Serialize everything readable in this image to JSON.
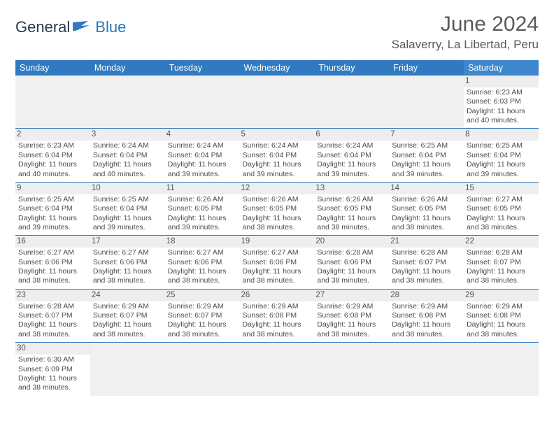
{
  "logo": {
    "general": "General",
    "blue": "Blue"
  },
  "header": {
    "title": "June 2024",
    "location": "Salaverry, La Libertad, Peru"
  },
  "colors": {
    "header_bg": "#2f7ac0",
    "header_bg_sat": "#3d87cd",
    "header_text": "#ffffff",
    "cell_border": "#2f7ac0",
    "daynum_bg": "#eeeeee",
    "body_text": "#4a4a4a",
    "title_text": "#5a5a5a"
  },
  "days_of_week": [
    "Sunday",
    "Monday",
    "Tuesday",
    "Wednesday",
    "Thursday",
    "Friday",
    "Saturday"
  ],
  "calendar": {
    "first_weekday_index": 6,
    "num_days": 30,
    "cells": [
      {
        "day": 1,
        "sunrise": "6:23 AM",
        "sunset": "6:03 PM",
        "daylight": "11 hours and 40 minutes."
      },
      {
        "day": 2,
        "sunrise": "6:23 AM",
        "sunset": "6:04 PM",
        "daylight": "11 hours and 40 minutes."
      },
      {
        "day": 3,
        "sunrise": "6:24 AM",
        "sunset": "6:04 PM",
        "daylight": "11 hours and 40 minutes."
      },
      {
        "day": 4,
        "sunrise": "6:24 AM",
        "sunset": "6:04 PM",
        "daylight": "11 hours and 39 minutes."
      },
      {
        "day": 5,
        "sunrise": "6:24 AM",
        "sunset": "6:04 PM",
        "daylight": "11 hours and 39 minutes."
      },
      {
        "day": 6,
        "sunrise": "6:24 AM",
        "sunset": "6:04 PM",
        "daylight": "11 hours and 39 minutes."
      },
      {
        "day": 7,
        "sunrise": "6:25 AM",
        "sunset": "6:04 PM",
        "daylight": "11 hours and 39 minutes."
      },
      {
        "day": 8,
        "sunrise": "6:25 AM",
        "sunset": "6:04 PM",
        "daylight": "11 hours and 39 minutes."
      },
      {
        "day": 9,
        "sunrise": "6:25 AM",
        "sunset": "6:04 PM",
        "daylight": "11 hours and 39 minutes."
      },
      {
        "day": 10,
        "sunrise": "6:25 AM",
        "sunset": "6:04 PM",
        "daylight": "11 hours and 39 minutes."
      },
      {
        "day": 11,
        "sunrise": "6:26 AM",
        "sunset": "6:05 PM",
        "daylight": "11 hours and 39 minutes."
      },
      {
        "day": 12,
        "sunrise": "6:26 AM",
        "sunset": "6:05 PM",
        "daylight": "11 hours and 38 minutes."
      },
      {
        "day": 13,
        "sunrise": "6:26 AM",
        "sunset": "6:05 PM",
        "daylight": "11 hours and 38 minutes."
      },
      {
        "day": 14,
        "sunrise": "6:26 AM",
        "sunset": "6:05 PM",
        "daylight": "11 hours and 38 minutes."
      },
      {
        "day": 15,
        "sunrise": "6:27 AM",
        "sunset": "6:05 PM",
        "daylight": "11 hours and 38 minutes."
      },
      {
        "day": 16,
        "sunrise": "6:27 AM",
        "sunset": "6:06 PM",
        "daylight": "11 hours and 38 minutes."
      },
      {
        "day": 17,
        "sunrise": "6:27 AM",
        "sunset": "6:06 PM",
        "daylight": "11 hours and 38 minutes."
      },
      {
        "day": 18,
        "sunrise": "6:27 AM",
        "sunset": "6:06 PM",
        "daylight": "11 hours and 38 minutes."
      },
      {
        "day": 19,
        "sunrise": "6:27 AM",
        "sunset": "6:06 PM",
        "daylight": "11 hours and 38 minutes."
      },
      {
        "day": 20,
        "sunrise": "6:28 AM",
        "sunset": "6:06 PM",
        "daylight": "11 hours and 38 minutes."
      },
      {
        "day": 21,
        "sunrise": "6:28 AM",
        "sunset": "6:07 PM",
        "daylight": "11 hours and 38 minutes."
      },
      {
        "day": 22,
        "sunrise": "6:28 AM",
        "sunset": "6:07 PM",
        "daylight": "11 hours and 38 minutes."
      },
      {
        "day": 23,
        "sunrise": "6:28 AM",
        "sunset": "6:07 PM",
        "daylight": "11 hours and 38 minutes."
      },
      {
        "day": 24,
        "sunrise": "6:29 AM",
        "sunset": "6:07 PM",
        "daylight": "11 hours and 38 minutes."
      },
      {
        "day": 25,
        "sunrise": "6:29 AM",
        "sunset": "6:07 PM",
        "daylight": "11 hours and 38 minutes."
      },
      {
        "day": 26,
        "sunrise": "6:29 AM",
        "sunset": "6:08 PM",
        "daylight": "11 hours and 38 minutes."
      },
      {
        "day": 27,
        "sunrise": "6:29 AM",
        "sunset": "6:08 PM",
        "daylight": "11 hours and 38 minutes."
      },
      {
        "day": 28,
        "sunrise": "6:29 AM",
        "sunset": "6:08 PM",
        "daylight": "11 hours and 38 minutes."
      },
      {
        "day": 29,
        "sunrise": "6:29 AM",
        "sunset": "6:08 PM",
        "daylight": "11 hours and 38 minutes."
      },
      {
        "day": 30,
        "sunrise": "6:30 AM",
        "sunset": "6:09 PM",
        "daylight": "11 hours and 38 minutes."
      }
    ],
    "labels": {
      "sunrise": "Sunrise:",
      "sunset": "Sunset:",
      "daylight": "Daylight:"
    }
  }
}
